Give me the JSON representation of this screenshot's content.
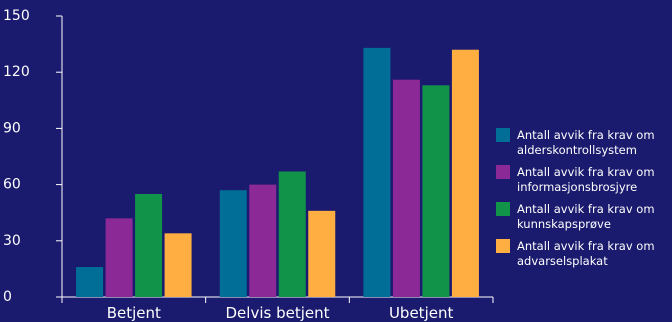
{
  "chart_data": {
    "type": "bar",
    "categories": [
      "Betjent",
      "Delvis betjent",
      "Ubetjent"
    ],
    "series": [
      {
        "name": "Antall avvik fra krav om alderskontrollsystem",
        "color": "#006e96",
        "values": [
          16,
          57,
          133
        ]
      },
      {
        "name": "Antall avvik fra krav om informasjonsbrosjyre",
        "color": "#8b2a96",
        "values": [
          42,
          60,
          116
        ]
      },
      {
        "name": "Antall avvik fra krav om kunnskapsprøve",
        "color": "#11944a",
        "values": [
          55,
          67,
          113
        ]
      },
      {
        "name": "Antall avvik fra krav om advarselsplakat",
        "color": "#ffae42",
        "values": [
          34,
          46,
          132
        ]
      }
    ],
    "legend_lines": [
      [
        "Antall avvik fra krav om",
        "alderskontrollsystem"
      ],
      [
        "Antall avvik fra krav om",
        "informasjonsbrosjyre"
      ],
      [
        "Antall avvik fra krav om",
        "kunnskapsprøve"
      ],
      [
        "Antall avvik fra krav om",
        "advarselsplakat"
      ]
    ],
    "ylim": [
      0,
      150
    ],
    "yticks": [
      0,
      30,
      60,
      90,
      120,
      150
    ],
    "legend_position": "right",
    "grid": false,
    "background": "#1a1a6e"
  }
}
